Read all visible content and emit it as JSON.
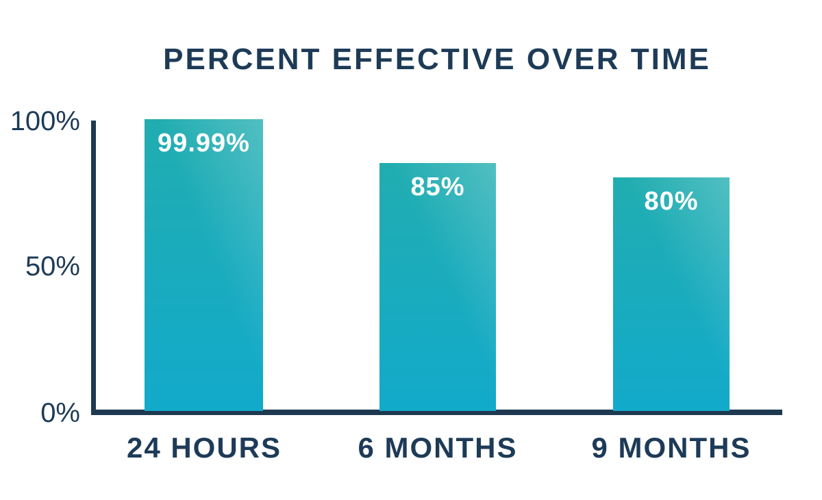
{
  "page": {
    "background_color": "#FFFFFF",
    "text_color": "#1D3B57",
    "axis_color": "#1E3950"
  },
  "chart": {
    "bar_gradient_top": "#21ADB0",
    "bar_gradient_bottom": "#12AACB",
    "bar_highlight": "rgba(255,255,255,0.22)",
    "value_label_color": "#FFFFFF"
  },
  "chart_data": {
    "type": "bar",
    "title": "PERCENT EFFECTIVE OVER TIME",
    "categories": [
      "24 HOURS",
      "6 MONTHS",
      "9 MONTHS"
    ],
    "values": [
      99.99,
      85,
      80
    ],
    "value_labels": [
      "99.99%",
      "85%",
      "80%"
    ],
    "xlabel": "",
    "ylabel": "",
    "y_ticks": [
      "100%",
      "50%",
      "0%"
    ],
    "ylim": [
      0,
      100
    ],
    "grid": false,
    "legend": false
  }
}
